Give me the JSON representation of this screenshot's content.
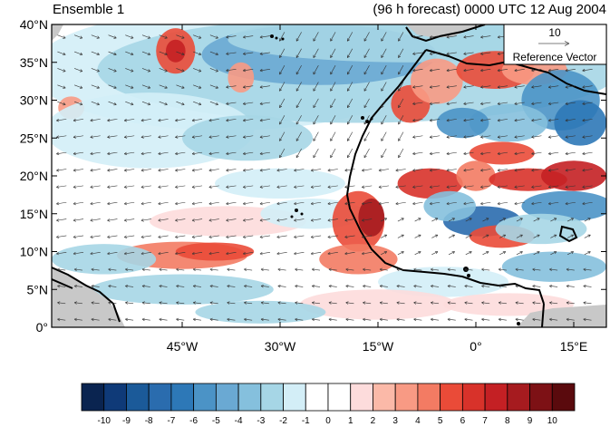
{
  "header": {
    "left_title": "Ensemble 1",
    "right_title": "(96 h forecast) 0000 UTC 12 Aug 2004"
  },
  "map": {
    "lon_range": [
      -65,
      20
    ],
    "lat_range": [
      0,
      40
    ],
    "lat_ticks": [
      {
        "value": 40,
        "label": "40°N"
      },
      {
        "value": 35,
        "label": "35°N"
      },
      {
        "value": 30,
        "label": "30°N"
      },
      {
        "value": 25,
        "label": "25°N"
      },
      {
        "value": 20,
        "label": "20°N"
      },
      {
        "value": 15,
        "label": "15°N"
      },
      {
        "value": 10,
        "label": "10°N"
      },
      {
        "value": 5,
        "label": "5°N"
      },
      {
        "value": 0,
        "label": "0°"
      }
    ],
    "lon_ticks": [
      {
        "value": -45,
        "label": "45°W"
      },
      {
        "value": -30,
        "label": "30°W"
      },
      {
        "value": -15,
        "label": "15°W"
      },
      {
        "value": 0,
        "label": "0°"
      },
      {
        "value": 15,
        "label": "15°E"
      }
    ],
    "reference_vector": {
      "magnitude": "10",
      "label": "Reference Vector"
    },
    "colorbar": {
      "labels": [
        "-10",
        "-9",
        "-8",
        "-7",
        "-6",
        "-5",
        "-4",
        "-3",
        "-2",
        "-1",
        "0",
        "1",
        "2",
        "3",
        "4",
        "5",
        "6",
        "7",
        "8",
        "9",
        "10"
      ],
      "colors": [
        "#0a2450",
        "#0f3a78",
        "#1b5a99",
        "#2a6cae",
        "#2d78b7",
        "#4b93c6",
        "#6aa9d3",
        "#85c0dd",
        "#a6d6e6",
        "#d3eef7",
        "#ffffff",
        "#ffffff",
        "#fddcdc",
        "#fbb9a8",
        "#f89a84",
        "#f37b63",
        "#ea4b38",
        "#d8322a",
        "#c42024",
        "#a61b1f",
        "#7d1115",
        "#5a0a0d"
      ]
    },
    "land_color": "#c8c8c8"
  }
}
